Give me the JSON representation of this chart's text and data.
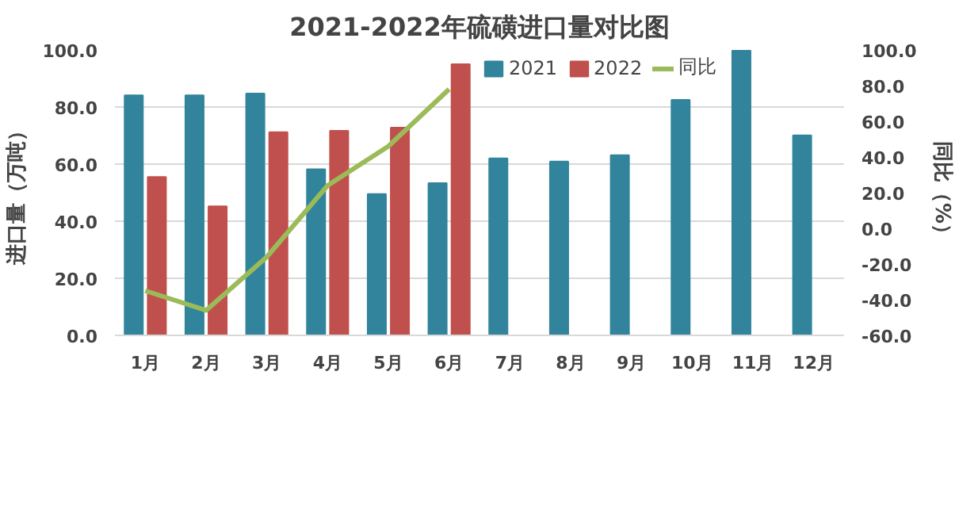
{
  "chart_data": {
    "type": "bar",
    "title": "2021-2022年硫磺进口量对比图",
    "categories": [
      "1月",
      "2月",
      "3月",
      "4月",
      "5月",
      "6月",
      "7月",
      "8月",
      "9月",
      "10月",
      "11月",
      "12月"
    ],
    "series": [
      {
        "name": "2021",
        "color": "#31849b",
        "values": [
          84.1,
          84.1,
          84.7,
          58.2,
          49.5,
          53.3,
          62.0,
          60.9,
          63.1,
          82.5,
          99.8,
          70.1
        ]
      },
      {
        "name": "2022",
        "color": "#c0504d",
        "values": [
          55.5,
          45.2,
          71.2,
          71.7,
          72.8,
          95.0,
          null,
          null,
          null,
          null,
          null,
          null
        ]
      },
      {
        "name": "同比",
        "color": "#9bbb59",
        "type": "line",
        "axis": "y2",
        "values": [
          -35,
          -46,
          -16,
          24,
          46,
          78,
          null,
          null,
          null,
          null,
          null,
          null
        ]
      }
    ],
    "ylabel": "进口量（万吨）",
    "y2label": "同比（%）",
    "ylim": [
      0,
      100
    ],
    "yticks": [
      {
        "value": 0,
        "label": "0.0"
      },
      {
        "value": 20,
        "label": "20.0"
      },
      {
        "value": 40,
        "label": "40.0"
      },
      {
        "value": 60,
        "label": "60.0"
      },
      {
        "value": 80,
        "label": "80.0"
      },
      {
        "value": 100,
        "label": "100.0"
      }
    ],
    "y2lim": [
      -60,
      100
    ],
    "y2ticks": [
      {
        "value": -60,
        "label": "-60.0"
      },
      {
        "value": -40,
        "label": "-40.0"
      },
      {
        "value": -20,
        "label": "-20.0"
      },
      {
        "value": 0,
        "label": "0.0"
      },
      {
        "value": 20,
        "label": "20.0"
      },
      {
        "value": 40,
        "label": "40.0"
      },
      {
        "value": 60,
        "label": "60.0"
      },
      {
        "value": 80,
        "label": "80.0"
      },
      {
        "value": 100,
        "label": "100.0"
      }
    ],
    "grid": "y",
    "legend": "top",
    "marker": "none"
  }
}
